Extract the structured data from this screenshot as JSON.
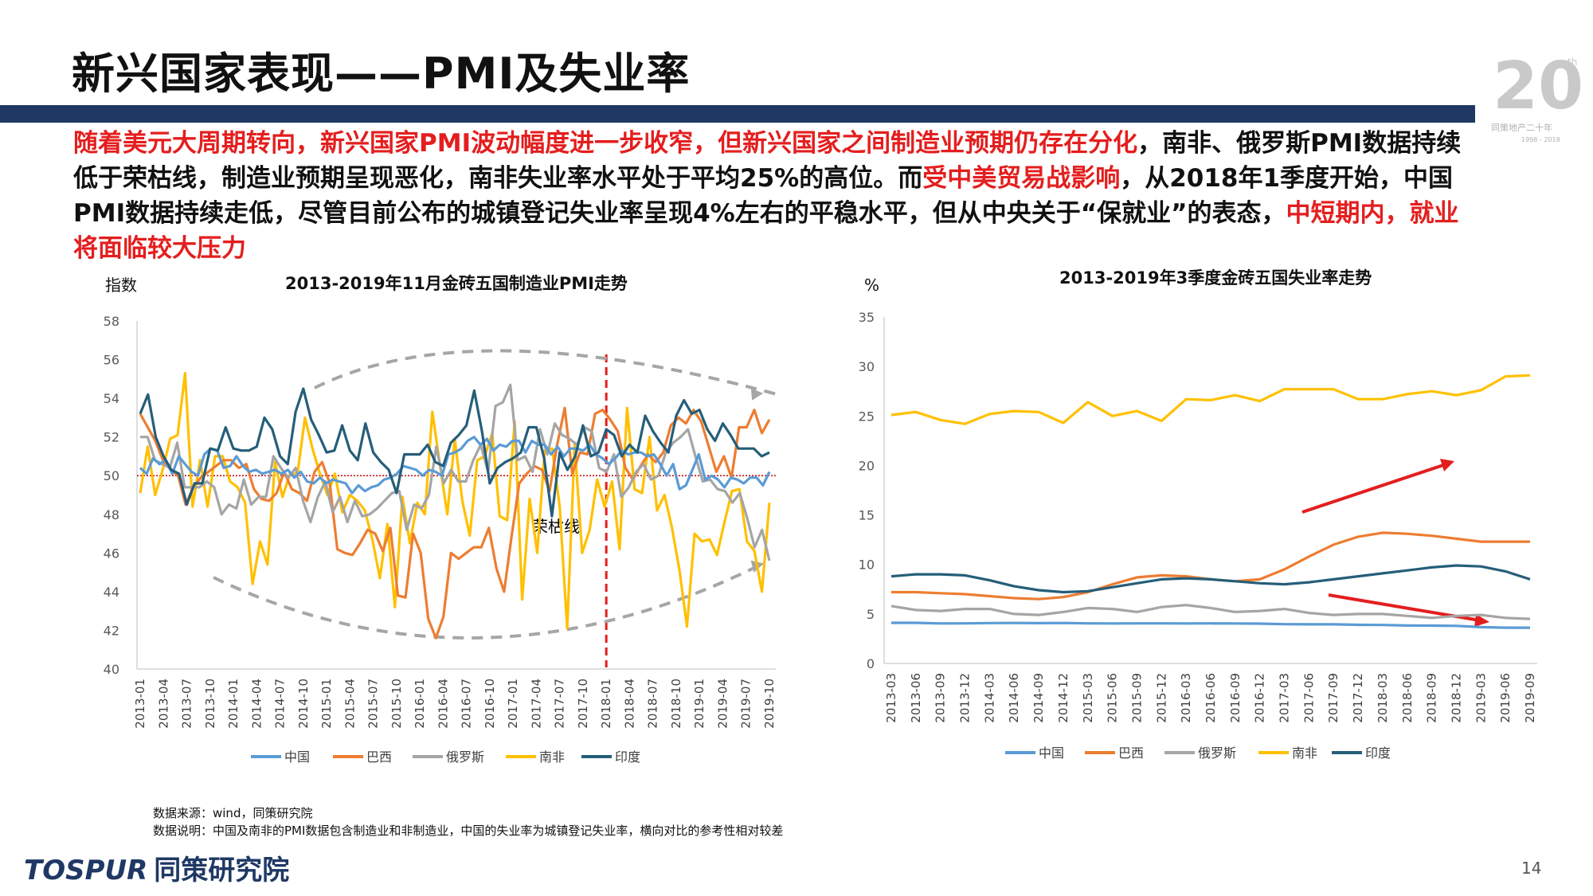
{
  "title": "新兴国家表现——PMI及失业率",
  "logo": {
    "number": "20",
    "sup": "th",
    "caption": "同策地产二十年",
    "years": "1998 - 2018"
  },
  "intro": [
    {
      "text": "随着美元大周期转向，新兴国家PMI波动幅度进一步收窄，但新兴国家之间制造业预期仍存在分化",
      "red": true
    },
    {
      "text": "，南非、俄罗斯PMI数据持续低于荣枯线，制造业预期呈现恶化，南非失业率水平处于平均25%的高位。而",
      "red": false
    },
    {
      "text": "受中美贸易战影响",
      "red": true
    },
    {
      "text": "，从2018年1季度开始，中国PMI数据持续走低，尽管目前公布的城镇登记失业率呈现4%左右的平稳水平，但从中央关于“保就业”的表态，",
      "red": false
    },
    {
      "text": "中短期内，就业将面临较大压力",
      "red": true
    }
  ],
  "colors": {
    "中国": "#5B9BD5",
    "巴西": "#ED7D31",
    "俄罗斯": "#A5A5A5",
    "南非": "#FFC000",
    "印度": "#255E79"
  },
  "chart_data": [
    {
      "type": "line",
      "title": "2013-2019年11月金砖五国制造业PMI走势",
      "ylabel": "指数",
      "ylim": [
        40,
        58
      ],
      "yticks": [
        40,
        42,
        44,
        46,
        48,
        50,
        52,
        54,
        56,
        58
      ],
      "reference_line": {
        "value": 50,
        "label": "荣枯线"
      },
      "marker_label": "2018-01",
      "xticks": [
        "2013-01",
        "2013-04",
        "2013-07",
        "2013-10",
        "2014-01",
        "2014-04",
        "2014-07",
        "2014-10",
        "2015-01",
        "2015-04",
        "2015-07",
        "2015-10",
        "2016-01",
        "2016-04",
        "2016-07",
        "2016-10",
        "2017-01",
        "2017-04",
        "2017-07",
        "2017-10",
        "2018-01",
        "2018-04",
        "2018-07",
        "2018-10",
        "2019-01",
        "2019-04",
        "2019-07",
        "2019-10"
      ],
      "legend": [
        "中国",
        "巴西",
        "俄罗斯",
        "南非",
        "印度"
      ],
      "series": [
        {
          "name": "中国",
          "values": [
            50.4,
            50.1,
            50.9,
            50.6,
            50.8,
            50.1,
            51.0,
            50.6,
            50.2,
            50.0,
            51.1,
            51.4,
            51.3,
            50.4,
            50.5,
            51.0,
            50.5,
            50.2,
            50.3,
            50.1,
            50.2,
            50.3,
            50.1,
            50.3,
            49.9,
            50.2,
            49.7,
            49.6,
            49.9,
            49.6,
            49.8,
            49.7,
            49.6,
            49.1,
            49.5,
            49.2,
            49.4,
            49.5,
            49.8,
            49.9,
            50.1,
            50.5,
            50.4,
            50.3,
            50.0,
            50.3,
            50.2,
            50.0,
            51.1,
            51.2,
            51.4,
            51.8,
            52.0,
            51.6,
            51.9,
            51.3,
            51.6,
            51.5,
            51.8,
            51.8,
            51.2,
            51.8,
            51.6,
            51.6,
            51.1,
            51.5,
            51.0,
            51.4,
            51.4,
            51.3,
            51.6,
            51.1,
            50.9,
            50.6,
            50.9,
            51.3,
            51.1,
            51.2,
            51.2,
            51.0,
            51.1,
            50.6,
            50.0,
            50.6,
            49.3,
            49.5,
            50.3,
            51.1,
            49.8,
            50.0,
            49.8,
            49.4,
            49.9,
            49.8,
            49.6,
            49.9,
            49.9,
            49.5,
            50.2
          ]
        },
        {
          "name": "巴西",
          "values": [
            53.2,
            52.5,
            51.8,
            50.8,
            50.3,
            50.0,
            48.5,
            49.4,
            49.9,
            50.2,
            50.5,
            50.8,
            50.8,
            50.4,
            50.6,
            49.3,
            48.8,
            48.7,
            49.1,
            50.2,
            49.3,
            49.1,
            48.7,
            50.2,
            50.7,
            49.6,
            46.2,
            46.0,
            45.9,
            46.5,
            47.2,
            47.0,
            46.1,
            47.3,
            43.8,
            43.7,
            47.0,
            46.0,
            42.6,
            41.6,
            42.7,
            46.0,
            45.7,
            46.0,
            46.3,
            46.3,
            47.3,
            45.2,
            44.0,
            46.9,
            49.6,
            50.1,
            50.5,
            50.3,
            49.2,
            51.6,
            53.5,
            50.1,
            51.2,
            51.1,
            53.2,
            53.4,
            52.9,
            52.3,
            50.4,
            49.8,
            50.5,
            51.1,
            50.7,
            51.2,
            52.6,
            53.0,
            52.7,
            53.4,
            52.8,
            51.5,
            50.2,
            51.0,
            49.9,
            52.5,
            52.5,
            53.4,
            52.2,
            52.9
          ]
        },
        {
          "name": "俄罗斯",
          "values": [
            52.0,
            52.0,
            50.8,
            50.6,
            50.4,
            51.7,
            49.4,
            49.4,
            49.4,
            49.7,
            49.4,
            48.0,
            48.5,
            48.3,
            49.8,
            48.5,
            48.9,
            48.9,
            51.0,
            50.4,
            49.9,
            50.4,
            48.7,
            47.6,
            48.9,
            49.7,
            48.1,
            48.9,
            47.6,
            48.7,
            47.9,
            48.0,
            48.3,
            48.7,
            49.1,
            49.2,
            47.2,
            48.5,
            48.3,
            49.0,
            51.5,
            49.6,
            50.3,
            49.7,
            49.7,
            50.8,
            51.6,
            50.2,
            53.6,
            53.8,
            54.7,
            50.8,
            51.0,
            50.2,
            52.4,
            51.1,
            52.7,
            52.1,
            51.9,
            51.6,
            52.5,
            52.3,
            50.4,
            50.2,
            51.1,
            48.9,
            49.4,
            50.2,
            50.6,
            49.8,
            50.0,
            51.2,
            51.7,
            52.0,
            52.4,
            51.0,
            49.7,
            49.8,
            49.3,
            49.2,
            48.6,
            49.1,
            47.8,
            46.3,
            47.2,
            45.6
          ]
        },
        {
          "name": "南非",
          "values": [
            49.1,
            51.5,
            49.0,
            50.3,
            51.9,
            52.1,
            55.3,
            48.4,
            50.8,
            48.4,
            51.0,
            51.0,
            49.7,
            49.4,
            48.6,
            44.4,
            46.6,
            45.4,
            50.7,
            48.9,
            50.1,
            50.1,
            53.0,
            51.4,
            50.1,
            49.0,
            50.1,
            48.1,
            49.0,
            48.7,
            48.2,
            46.7,
            44.7,
            47.5,
            43.2,
            48.9,
            46.5,
            48.6,
            48.0,
            53.3,
            50.6,
            48.0,
            51.9,
            48.7,
            46.9,
            50.8,
            51.0,
            52.2,
            47.9,
            47.7,
            52.8,
            43.6,
            48.8,
            46.0,
            51.3,
            51.4,
            48.4,
            42.1,
            51.6,
            46.0,
            47.2,
            49.8,
            48.4,
            49.7,
            46.2,
            53.5,
            49.3,
            49.1,
            52.0,
            48.2,
            49.0,
            47.3,
            45.1,
            42.2,
            47.0,
            46.6,
            46.7,
            45.9,
            47.6,
            49.2,
            49.3,
            46.6,
            46.1,
            44.0,
            48.6
          ]
        },
        {
          "name": "印度",
          "values": [
            53.2,
            54.2,
            52.0,
            51.0,
            50.3,
            50.1,
            48.5,
            49.6,
            49.6,
            51.4,
            51.3,
            52.5,
            51.4,
            51.3,
            51.3,
            51.5,
            53.0,
            52.4,
            51.0,
            50.6,
            53.3,
            54.5,
            52.9,
            52.1,
            51.2,
            51.3,
            52.6,
            51.3,
            50.8,
            52.7,
            51.2,
            50.7,
            50.3,
            49.1,
            51.1,
            51.1,
            51.1,
            51.6,
            50.7,
            50.5,
            51.7,
            52.1,
            52.6,
            54.4,
            52.3,
            49.6,
            50.4,
            50.7,
            50.9,
            51.2,
            52.5,
            52.5,
            50.9,
            47.9,
            51.2,
            50.3,
            51.0,
            52.6,
            51.0,
            51.2,
            52.4,
            52.1,
            51.0,
            51.6,
            51.2,
            53.1,
            52.3,
            51.7,
            51.2,
            53.1,
            53.9,
            53.2,
            53.4,
            52.4,
            51.8,
            52.7,
            52.1,
            51.4,
            51.4,
            51.4,
            51.0,
            51.2
          ]
        }
      ]
    },
    {
      "type": "line",
      "title": "2013-2019年3季度金砖五国失业率走势",
      "ylabel": "%",
      "ylim": [
        0,
        35
      ],
      "yticks": [
        0,
        5,
        10,
        15,
        20,
        25,
        30,
        35
      ],
      "x": [
        "2013-03",
        "2013-06",
        "2013-09",
        "2013-12",
        "2014-03",
        "2014-06",
        "2014-09",
        "2014-12",
        "2015-03",
        "2015-06",
        "2015-09",
        "2015-12",
        "2016-03",
        "2016-06",
        "2016-09",
        "2016-12",
        "2017-03",
        "2017-06",
        "2017-09",
        "2017-12",
        "2018-03",
        "2018-06",
        "2018-09",
        "2018-12",
        "2019-03",
        "2019-06",
        "2019-09"
      ],
      "legend": [
        "中国",
        "巴西",
        "俄罗斯",
        "南非",
        "印度"
      ],
      "series": [
        {
          "name": "中国",
          "values": [
            4.1,
            4.1,
            4.04,
            4.05,
            4.08,
            4.09,
            4.07,
            4.09,
            4.05,
            4.04,
            4.05,
            4.05,
            4.04,
            4.05,
            4.04,
            4.02,
            3.97,
            3.95,
            3.95,
            3.9,
            3.89,
            3.83,
            3.82,
            3.8,
            3.67,
            3.61,
            3.61
          ]
        },
        {
          "name": "巴西",
          "values": [
            7.2,
            7.2,
            7.1,
            7.0,
            6.8,
            6.6,
            6.5,
            6.7,
            7.2,
            8.0,
            8.7,
            8.9,
            8.8,
            8.5,
            8.3,
            8.5,
            9.5,
            10.8,
            12.0,
            12.8,
            13.2,
            13.1,
            12.9,
            12.6,
            12.3,
            12.3,
            12.3
          ]
        },
        {
          "name": "俄罗斯",
          "values": [
            5.8,
            5.4,
            5.3,
            5.5,
            5.5,
            5.0,
            4.9,
            5.2,
            5.6,
            5.5,
            5.2,
            5.7,
            5.9,
            5.6,
            5.2,
            5.3,
            5.5,
            5.1,
            4.9,
            5.0,
            5.0,
            4.8,
            4.6,
            4.8,
            4.9,
            4.6,
            4.5
          ]
        },
        {
          "name": "南非",
          "values": [
            25.1,
            25.4,
            24.6,
            24.2,
            25.2,
            25.5,
            25.4,
            24.3,
            26.4,
            25.0,
            25.5,
            24.5,
            26.7,
            26.6,
            27.1,
            26.5,
            27.7,
            27.7,
            27.7,
            26.7,
            26.7,
            27.2,
            27.5,
            27.1,
            27.6,
            29.0,
            29.1
          ]
        },
        {
          "name": "印度",
          "values": [
            8.8,
            9.0,
            9.0,
            8.9,
            8.4,
            7.8,
            7.4,
            7.2,
            7.3,
            7.7,
            8.1,
            8.5,
            8.6,
            8.5,
            8.3,
            8.1,
            8.0,
            8.2,
            8.5,
            8.8,
            9.1,
            9.4,
            9.7,
            9.9,
            9.8,
            9.3,
            8.5
          ]
        }
      ]
    }
  ],
  "source_lines": [
    "数据来源：wind，同策研究院",
    "数据说明：中国及南非的PMI数据包含制造业和非制造业，中国的失业率为城镇登记失业率，横向对比的参考性相对较差"
  ],
  "brand": {
    "en": "TOSPUR",
    "cn": "同策研究院"
  },
  "page_number": "14"
}
